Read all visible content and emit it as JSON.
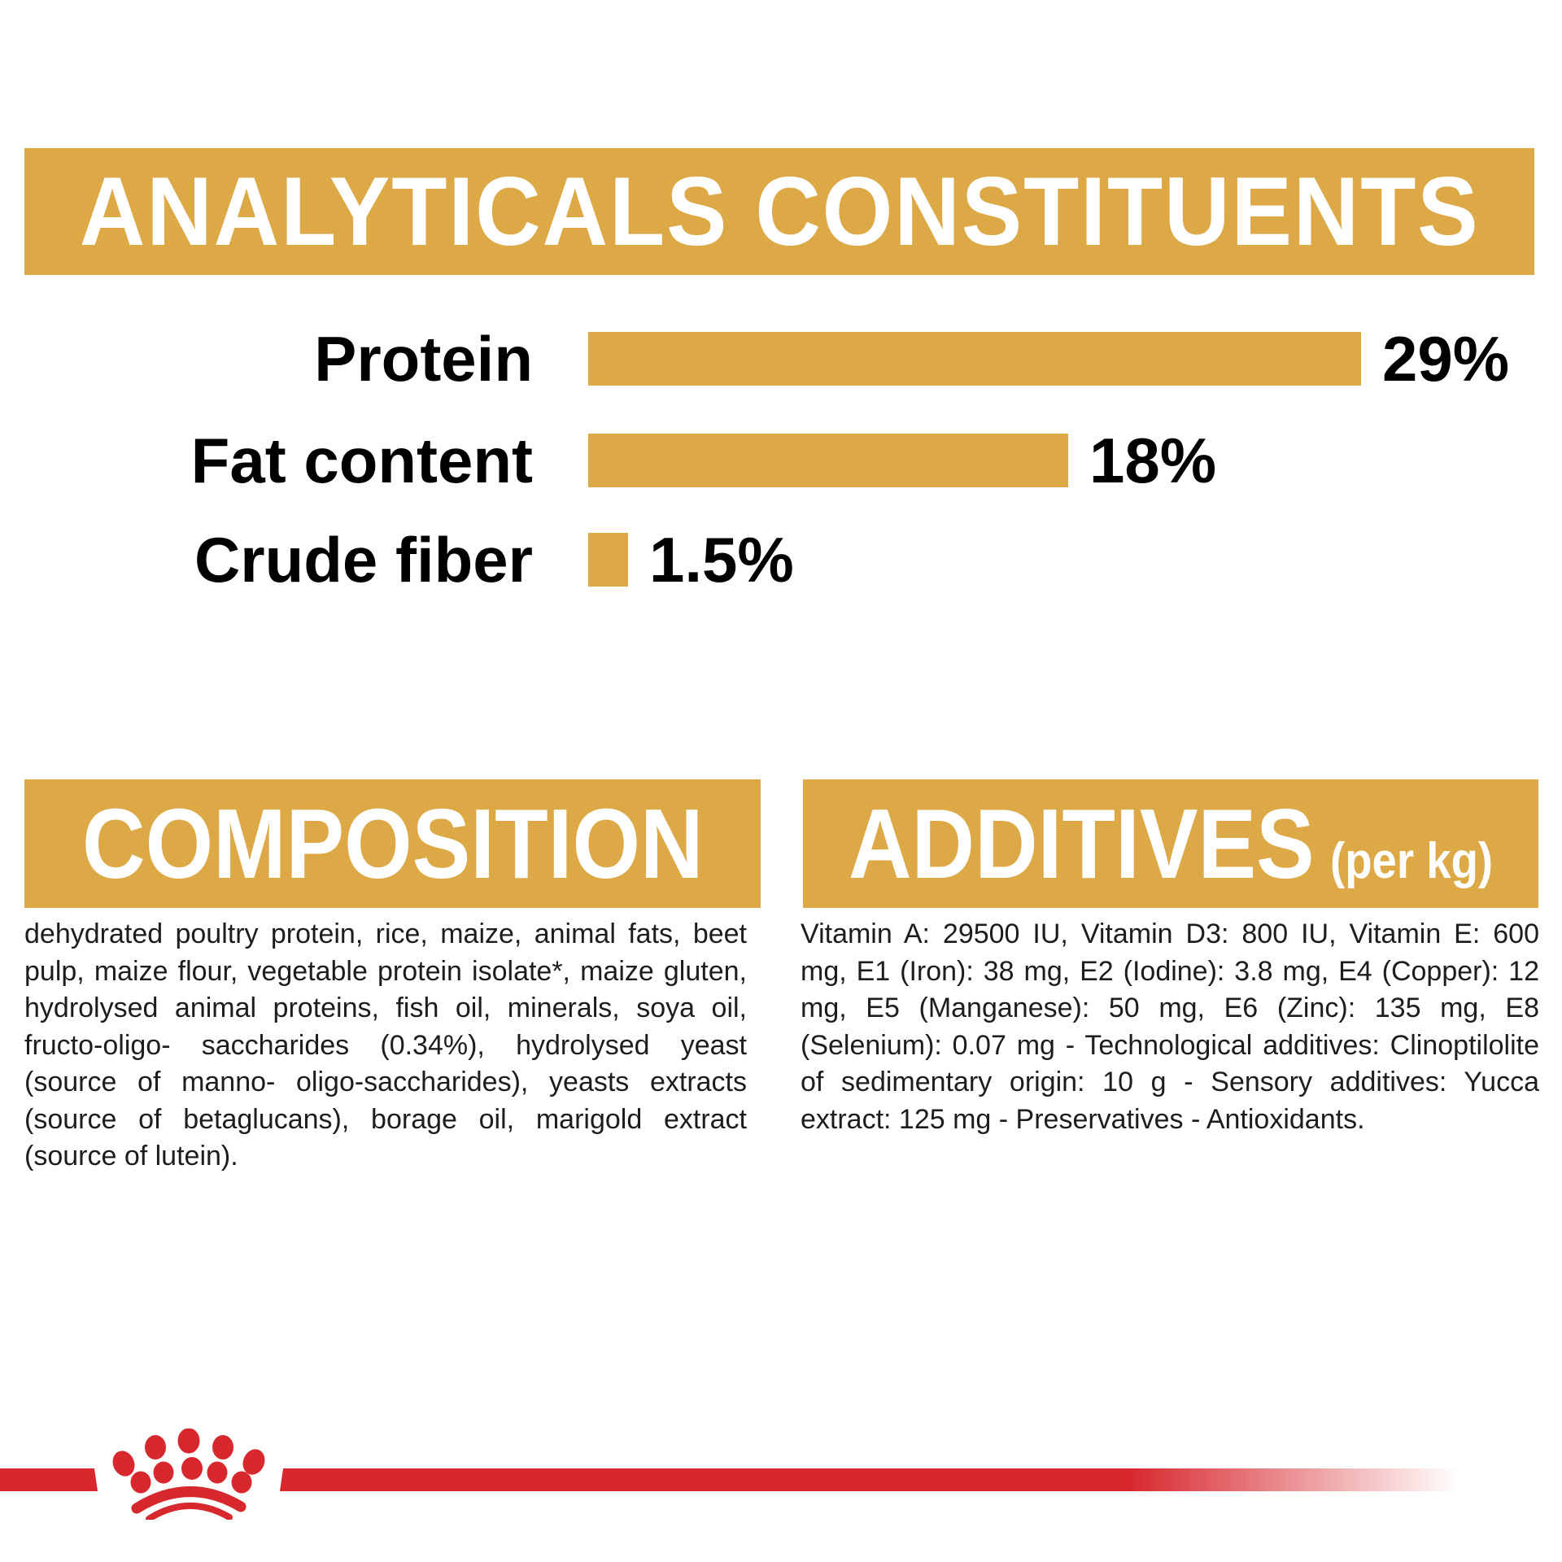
{
  "banner": {
    "title": "ANALYTICALS CONSTITUENTS"
  },
  "chart_data": {
    "type": "bar",
    "orientation": "horizontal",
    "title": "ANALYTICALS CONSTITUENTS",
    "categories": [
      "Protein",
      "Fat content",
      "Crude fiber"
    ],
    "values": [
      29,
      18,
      1.5
    ],
    "value_labels": [
      "29%",
      "18%",
      "1.5%"
    ],
    "xlabel": "",
    "ylabel": "",
    "xlim": [
      0,
      29
    ],
    "grid": false,
    "legend": false,
    "bar_color": "#DDA947",
    "label_color": "#000000"
  },
  "sections": {
    "composition": {
      "title": "COMPOSITION",
      "body": "dehydrated poultry protein, rice, maize, animal fats, beet pulp, maize flour, vegetable protein isolate*, maize gluten, hydrolysed animal proteins, fish oil, minerals, soya oil, fructo-oligo- saccharides (0.34%), hydrolysed yeast (source of manno- oligo-saccharides), yeasts extracts (source of betaglucans), borage oil, marigold extract (source of lutein)."
    },
    "additives": {
      "title": "ADDITIVES",
      "title_suffix": "(per kg)",
      "body": "Vitamin A: 29500 IU, Vitamin D3: 800 IU, Vitamin E: 600 mg, E1 (Iron): 38 mg, E2 (Iodine): 3.8 mg, E4 (Copper): 12 mg, E5 (Manganese): 50 mg, E6 (Zinc): 135 mg, E8 (Selenium): 0.07 mg - Technological additives: Clinoptilolite of sedimentary origin: 10 g - Sensory additives: Yucca extract: 125 mg - Preservatives - Antioxidants."
    }
  },
  "footer": {
    "logo": "royal-canin-crown"
  },
  "colors": {
    "gold": "#DDA947",
    "red": "#D7282E",
    "text": "#1d1d1b"
  }
}
